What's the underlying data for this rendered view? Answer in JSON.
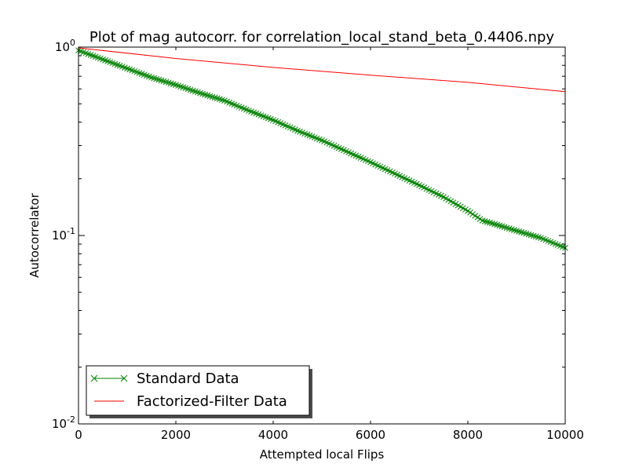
{
  "chart_data": {
    "type": "line",
    "title": "Plot of mag autocorr. for correlation_local_stand_beta_0.4406.npy",
    "xlabel": "Attempted local Flips",
    "ylabel": "Autocorrelator",
    "xlim": [
      0,
      10000
    ],
    "ylim": [
      0.01,
      1
    ],
    "yscale": "log",
    "grid": false,
    "legend_position": "lower-left",
    "x_ticks": [
      0,
      2000,
      4000,
      6000,
      8000,
      10000
    ],
    "x_tick_labels": [
      "0",
      "2000",
      "4000",
      "6000",
      "8000",
      "10000"
    ],
    "y_ticks": [
      0.01,
      0.1,
      1
    ],
    "y_tick_labels": [
      {
        "base": "10",
        "exp": "-2"
      },
      {
        "base": "10",
        "exp": "-1"
      },
      {
        "base": "10",
        "exp": "0"
      }
    ],
    "series": [
      {
        "name": "Standard Data",
        "color": "#008000",
        "marker": "x",
        "x": [
          0,
          500,
          1000,
          1500,
          2000,
          2500,
          3000,
          3500,
          4000,
          4500,
          5000,
          5500,
          6000,
          6500,
          7000,
          7500,
          8000,
          8300,
          8500,
          9000,
          9500,
          10000
        ],
        "y": [
          0.96,
          0.86,
          0.77,
          0.69,
          0.63,
          0.57,
          0.52,
          0.46,
          0.41,
          0.36,
          0.32,
          0.28,
          0.245,
          0.213,
          0.185,
          0.16,
          0.135,
          0.12,
          0.116,
          0.106,
          0.097,
          0.086
        ]
      },
      {
        "name": "Factorized-Filter Data",
        "color": "#ff0000",
        "marker": "none",
        "x": [
          0,
          2000,
          4000,
          6000,
          8000,
          10000
        ],
        "y": [
          0.99,
          0.87,
          0.78,
          0.71,
          0.65,
          0.58
        ]
      }
    ]
  }
}
